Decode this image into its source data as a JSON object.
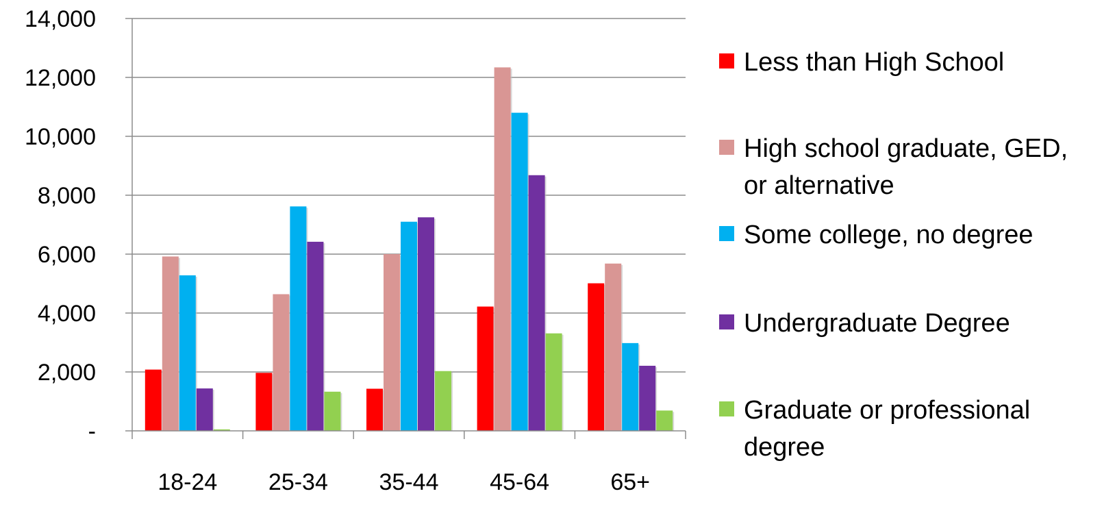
{
  "chart_data": {
    "type": "bar",
    "categories": [
      "18-24",
      "25-34",
      "35-44",
      "45-64",
      "65+"
    ],
    "series": [
      {
        "name": "Less than High School",
        "color": "#ff0000",
        "values": [
          2080,
          1970,
          1430,
          4220,
          5010
        ]
      },
      {
        "name": "High school graduate, GED, or alternative",
        "color": "#d99694",
        "values": [
          5920,
          4640,
          6000,
          12340,
          5680
        ]
      },
      {
        "name": "Some college, no degree",
        "color": "#00b0f0",
        "values": [
          5280,
          7620,
          7100,
          10800,
          2980
        ]
      },
      {
        "name": "Undergraduate Degree",
        "color": "#7030a0",
        "values": [
          1440,
          6420,
          7250,
          8680,
          2210
        ]
      },
      {
        "name": "Graduate or professional degree",
        "color": "#92d050",
        "values": [
          50,
          1330,
          2030,
          3310,
          690
        ]
      }
    ],
    "ylim": [
      0,
      14000
    ],
    "yticks": [
      0,
      2000,
      4000,
      6000,
      8000,
      10000,
      12000,
      14000
    ],
    "ytick_labels": [
      "-",
      "2,000",
      "4,000",
      "6,000",
      "8,000",
      "10,000",
      "12,000",
      "14,000"
    ],
    "grid": true,
    "legend_position": "right",
    "title": "",
    "xlabel": "",
    "ylabel": ""
  }
}
